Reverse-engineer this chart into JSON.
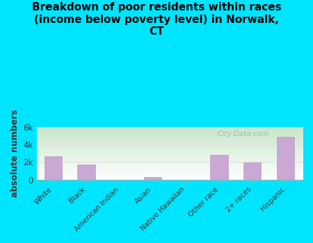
{
  "title": "Breakdown of poor residents within races\n(income below poverty level) in Norwalk,\nCT",
  "categories": [
    "White",
    "Black",
    "American Indian",
    "Asian",
    "Native Hawaiian",
    "Other race",
    "2+ races",
    "Hispanic"
  ],
  "values": [
    2650,
    1700,
    0,
    250,
    0,
    2800,
    1950,
    4900
  ],
  "bar_color": "#c9a8d4",
  "ylabel": "absolute numbers",
  "ylim": [
    0,
    6000
  ],
  "yticks": [
    0,
    2000,
    4000,
    6000
  ],
  "ytick_labels": [
    "0",
    "2k",
    "4k",
    "6k"
  ],
  "background_color": "#00e5ff",
  "plot_bg_color_top_left": "#c8e6c9",
  "plot_bg_color_right": "#f8fff8",
  "plot_bg_color_bottom": "#ffffff",
  "title_fontsize": 11,
  "axis_label_fontsize": 9,
  "watermark": "City-Data.com",
  "grid_color": "#e0e0e0"
}
